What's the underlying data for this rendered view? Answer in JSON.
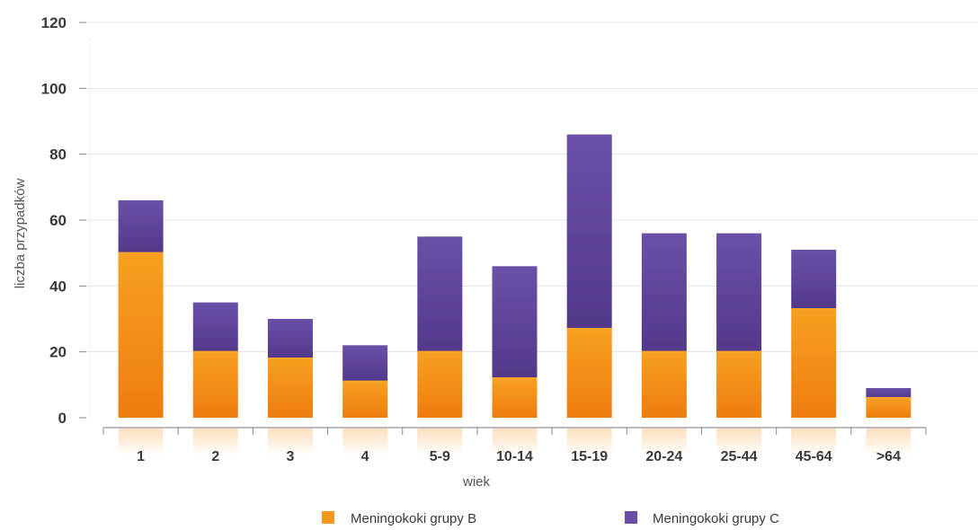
{
  "chart_data": {
    "type": "bar",
    "stacked": true,
    "categories": [
      "1",
      "2",
      "3",
      "4",
      "5-9",
      "10-14",
      "15-19",
      "20-24",
      "25-44",
      "45-64",
      ">64"
    ],
    "series": [
      {
        "name": "Meningokoki grupy B",
        "color": "#f39a1c",
        "values": [
          50,
          20,
          18,
          11,
          20,
          12,
          27,
          20,
          20,
          33,
          6
        ]
      },
      {
        "name": "Meningokoki grupy C",
        "color": "#6a4da3",
        "values": [
          16,
          15,
          12,
          11,
          35,
          34,
          59,
          36,
          36,
          18,
          3
        ]
      }
    ],
    "xlabel": "wiek",
    "ylabel": "liczba przypadków",
    "ylim": [
      0,
      120
    ],
    "yticks": [
      0,
      20,
      40,
      60,
      80,
      100,
      120
    ],
    "grid": true,
    "legend_position": "bottom"
  }
}
